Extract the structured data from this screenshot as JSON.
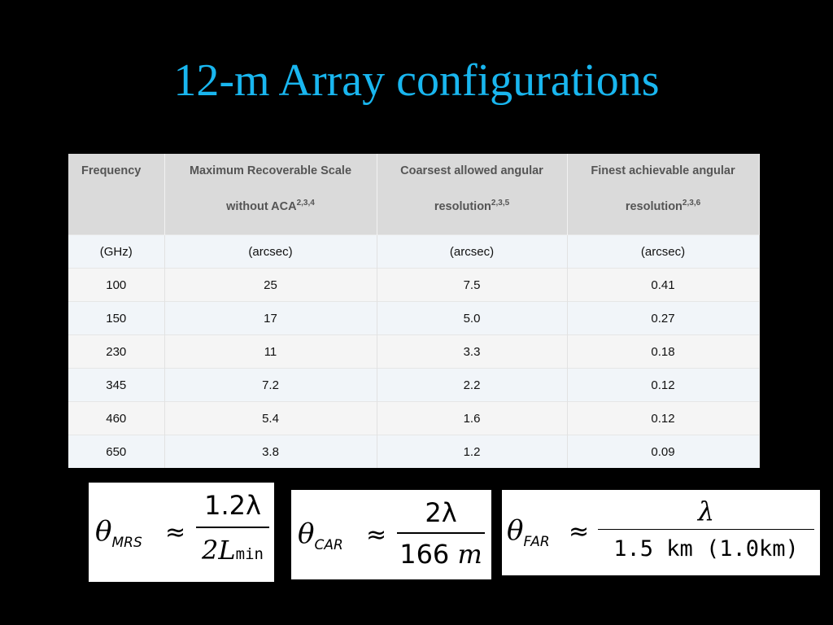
{
  "slide": {
    "title": "12-m Array configurations"
  },
  "table": {
    "headers": [
      {
        "line1": "Frequency",
        "line2": "",
        "sup": ""
      },
      {
        "line1": "Maximum Recoverable Scale",
        "line2": "without ACA",
        "sup": "2,3,4"
      },
      {
        "line1": "Coarsest allowed angular",
        "line2": "resolution",
        "sup": "2,3,5"
      },
      {
        "line1": "Finest achievable angular",
        "line2": "resolution",
        "sup": "2,3,6"
      }
    ],
    "rows": [
      [
        "(GHz)",
        "(arcsec)",
        "(arcsec)",
        "(arcsec)"
      ],
      [
        "100",
        "25",
        "7.5",
        "0.41"
      ],
      [
        "150",
        "17",
        "5.0",
        "0.27"
      ],
      [
        "230",
        "11",
        "3.3",
        "0.18"
      ],
      [
        "345",
        "7.2",
        "2.2",
        "0.12"
      ],
      [
        "460",
        "5.4",
        "1.6",
        "0.12"
      ],
      [
        "650",
        "3.8",
        "1.2",
        "0.09"
      ]
    ]
  },
  "formulas": {
    "mrs": {
      "symbol": "θ",
      "sub": "MRS",
      "approx": "≈",
      "num": "1.2λ",
      "den_main": "2L",
      "den_sub": "min"
    },
    "car": {
      "symbol": "θ",
      "sub": "CAR",
      "approx": "≈",
      "num": "2λ",
      "den_main": "166",
      "den_unit": "m"
    },
    "far": {
      "symbol": "θ",
      "sub": "FAR",
      "approx": "≈",
      "num": "λ",
      "den": "1.5 km (1.0km)"
    }
  }
}
